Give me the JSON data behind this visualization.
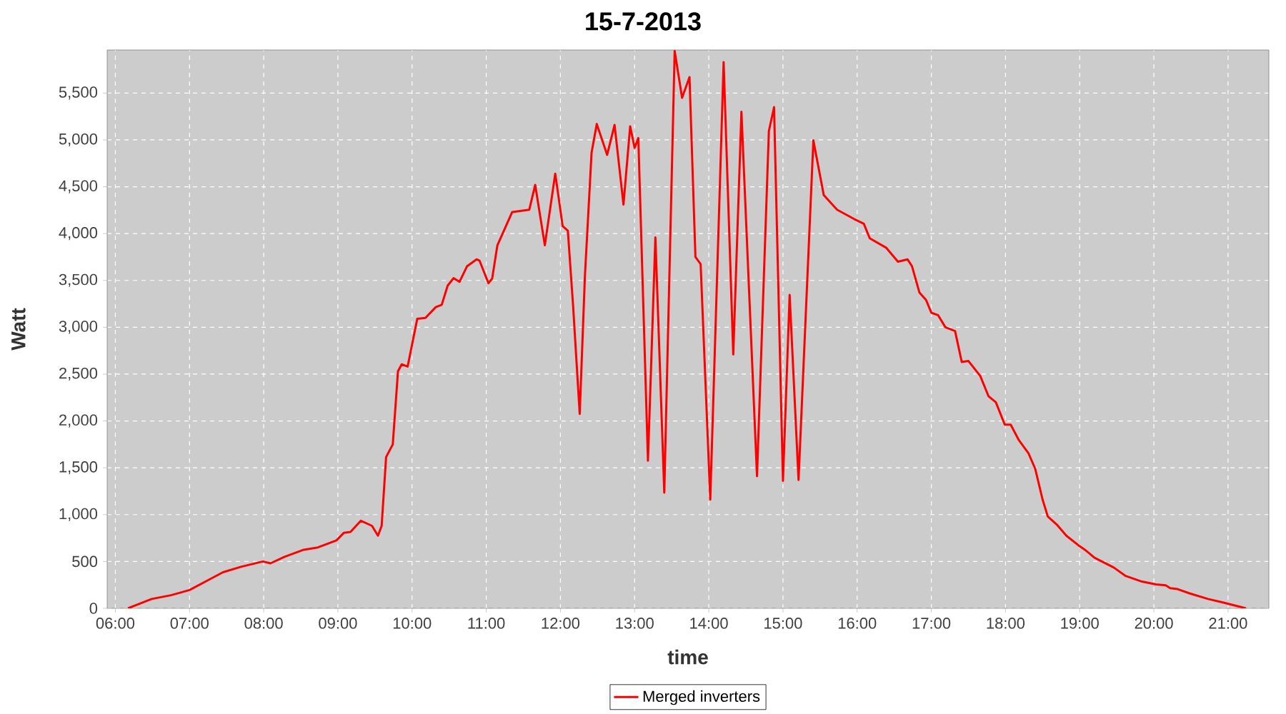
{
  "chart_data": {
    "type": "line",
    "title": "15-7-2013",
    "xlabel": "time",
    "ylabel": "Watt",
    "x": [
      6.17,
      6.3,
      6.49,
      6.75,
      7.0,
      7.26,
      7.45,
      7.7,
      7.99,
      8.09,
      8.28,
      8.54,
      8.73,
      8.98,
      9.08,
      9.17,
      9.31,
      9.46,
      9.54,
      9.59,
      9.65,
      9.74,
      9.81,
      9.86,
      9.94,
      10.07,
      10.18,
      10.32,
      10.4,
      10.48,
      10.56,
      10.64,
      10.74,
      10.87,
      10.91,
      11.03,
      11.08,
      11.15,
      11.35,
      11.58,
      11.66,
      11.79,
      11.93,
      12.03,
      12.1,
      12.17,
      12.26,
      12.33,
      12.42,
      12.49,
      12.63,
      12.73,
      12.85,
      12.94,
      13.0,
      13.05,
      13.18,
      13.28,
      13.4,
      13.54,
      13.64,
      13.74,
      13.82,
      13.89,
      14.02,
      14.2,
      14.33,
      14.44,
      14.65,
      14.81,
      14.88,
      15.0,
      15.09,
      15.21,
      15.41,
      15.55,
      15.73,
      15.96,
      16.09,
      16.17,
      16.39,
      16.55,
      16.68,
      16.74,
      16.84,
      16.93,
      17.0,
      17.09,
      17.19,
      17.32,
      17.41,
      17.5,
      17.66,
      17.77,
      17.87,
      17.99,
      18.07,
      18.18,
      18.31,
      18.4,
      18.5,
      18.57,
      18.69,
      18.82,
      18.98,
      19.07,
      19.2,
      19.46,
      19.62,
      19.84,
      20.03,
      20.16,
      20.22,
      20.32,
      20.48,
      20.73,
      20.92,
      21.12,
      21.24
    ],
    "series": [
      {
        "name": "Merged inverters",
        "color": "#ff0000",
        "values": [
          0,
          40,
          100,
          140,
          195,
          305,
          385,
          445,
          500,
          480,
          550,
          625,
          650,
          725,
          805,
          815,
          935,
          880,
          775,
          880,
          1615,
          1750,
          2530,
          2605,
          2580,
          3090,
          3100,
          3215,
          3240,
          3445,
          3525,
          3485,
          3650,
          3725,
          3710,
          3470,
          3520,
          3875,
          4230,
          4255,
          4520,
          3875,
          4640,
          4080,
          4030,
          3240,
          2075,
          3545,
          4865,
          5170,
          4840,
          5160,
          4310,
          5145,
          4915,
          5020,
          1575,
          3960,
          1235,
          5950,
          5450,
          5670,
          3750,
          3675,
          1160,
          5830,
          2710,
          5300,
          1410,
          5095,
          5350,
          1360,
          3345,
          1370,
          4995,
          4410,
          4255,
          4155,
          4105,
          3950,
          3850,
          3700,
          3725,
          3650,
          3370,
          3290,
          3155,
          3130,
          3000,
          2960,
          2630,
          2640,
          2480,
          2265,
          2200,
          1960,
          1960,
          1795,
          1655,
          1490,
          1160,
          980,
          895,
          775,
          675,
          625,
          540,
          435,
          345,
          285,
          255,
          245,
          215,
          205,
          160,
          100,
          65,
          25,
          0
        ]
      }
    ],
    "xlim": [
      5.89,
      21.55
    ],
    "ylim": [
      0,
      5960
    ],
    "xticks": [
      {
        "value": 6,
        "label": "06:00"
      },
      {
        "value": 7,
        "label": "07:00"
      },
      {
        "value": 8,
        "label": "08:00"
      },
      {
        "value": 9,
        "label": "09:00"
      },
      {
        "value": 10,
        "label": "10:00"
      },
      {
        "value": 11,
        "label": "11:00"
      },
      {
        "value": 12,
        "label": "12:00"
      },
      {
        "value": 13,
        "label": "13:00"
      },
      {
        "value": 14,
        "label": "14:00"
      },
      {
        "value": 15,
        "label": "15:00"
      },
      {
        "value": 16,
        "label": "16:00"
      },
      {
        "value": 17,
        "label": "17:00"
      },
      {
        "value": 18,
        "label": "18:00"
      },
      {
        "value": 19,
        "label": "19:00"
      },
      {
        "value": 20,
        "label": "20:00"
      },
      {
        "value": 21,
        "label": "21:00"
      }
    ],
    "yticks": [
      0,
      500,
      {
        "value": 1000,
        "label": "1,000"
      },
      {
        "value": 1500,
        "label": "1,500"
      },
      {
        "value": 2000,
        "label": "2,000"
      },
      {
        "value": 2500,
        "label": "2,500"
      },
      {
        "value": 3000,
        "label": "3,000"
      },
      {
        "value": 3500,
        "label": "3,500"
      },
      {
        "value": 4000,
        "label": "4,000"
      },
      {
        "value": 4500,
        "label": "4,500"
      },
      {
        "value": 5000,
        "label": "5,000"
      },
      {
        "value": 5500,
        "label": "5,500"
      }
    ],
    "grid": true,
    "legend": "bottom",
    "marker": "none",
    "line_style": "solid"
  }
}
